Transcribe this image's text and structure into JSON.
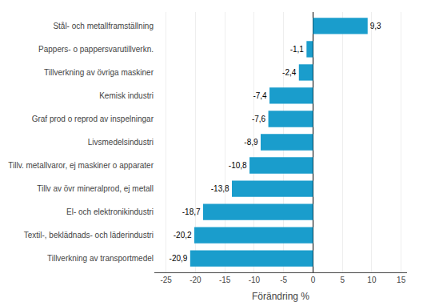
{
  "chart_data": {
    "type": "bar",
    "orientation": "horizontal",
    "categories": [
      "Tillverkning av transportmedel",
      "Textil-, beklädnads- och läderindustri",
      "El- och elektronikindustri",
      "Tillv av övr mineralprod, ej metall",
      "Tillv. metallvaror, ej maskiner o apparater",
      "Livsmedelsindustri",
      "Graf prod o reprod av inspelningar",
      "Kemisk industri",
      "Tillverkning av övriga maskiner",
      "Pappers- o pappersvarutillverkn.",
      "Stål- och metallframställning"
    ],
    "values": [
      -20.9,
      -20.2,
      -18.7,
      -13.8,
      -10.8,
      -8.9,
      -7.6,
      -7.4,
      -2.4,
      -1.1,
      9.3
    ],
    "value_labels": [
      "-20,9",
      "-20,2",
      "-18,7",
      "-13,8",
      "-10,8",
      "-8,9",
      "-7,6",
      "-7,4",
      "-2,4",
      "-1,1",
      "9,3"
    ],
    "data_labels": true,
    "color": "#1a9dcc",
    "xlabel": "Förändring %",
    "xlim": [
      -27,
      16
    ],
    "xticks": [
      -25,
      -20,
      -15,
      -10,
      -5,
      0,
      5,
      10,
      15
    ],
    "grid": true
  }
}
